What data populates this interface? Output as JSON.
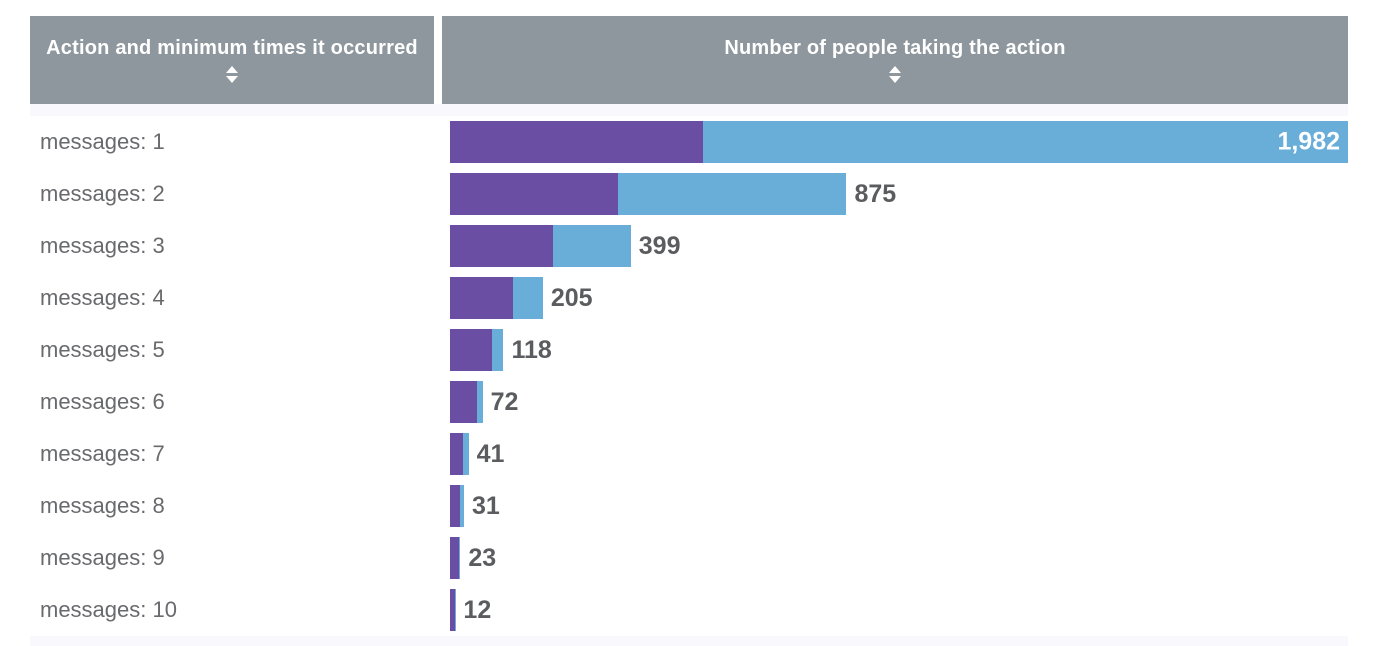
{
  "table": {
    "columns": [
      {
        "label": "Action and minimum times it occurred",
        "sortable": true
      },
      {
        "label": "Number of people taking the action",
        "sortable": true
      }
    ]
  },
  "colors": {
    "header_bg": "#8e979d",
    "header_text": "#ffffff",
    "purple": "#6a4ea4",
    "blue": "#69add9",
    "stripe": "#f8f8fd",
    "label_text": "#696a6d",
    "value_text": "#5b5c5f",
    "value_inside_text": "#ffffff"
  },
  "chart_data": {
    "type": "bar",
    "orientation": "horizontal",
    "stacked": true,
    "title": "Number of people taking the action",
    "categories": [
      "messages: 1",
      "messages: 2",
      "messages: 3",
      "messages: 4",
      "messages: 5",
      "messages: 6",
      "messages: 7",
      "messages: 8",
      "messages: 9",
      "messages: 10"
    ],
    "series": [
      {
        "name": "segment-1-purple",
        "color": "#6a4ea4",
        "values": [
          558,
          371,
          227,
          139,
          93,
          60,
          29,
          22,
          20,
          10
        ]
      },
      {
        "name": "segment-2-blue",
        "color": "#69add9",
        "values": [
          1424,
          504,
          172,
          66,
          25,
          12,
          12,
          9,
          3,
          2
        ]
      }
    ],
    "totals": [
      1982,
      875,
      399,
      205,
      118,
      72,
      41,
      31,
      23,
      12
    ],
    "total_labels": [
      "1,982",
      "875",
      "399",
      "205",
      "118",
      "72",
      "41",
      "31",
      "23",
      "12"
    ],
    "xmax": 1982,
    "legend": "none",
    "gridlines": false,
    "value_labels": "end-of-bar"
  }
}
